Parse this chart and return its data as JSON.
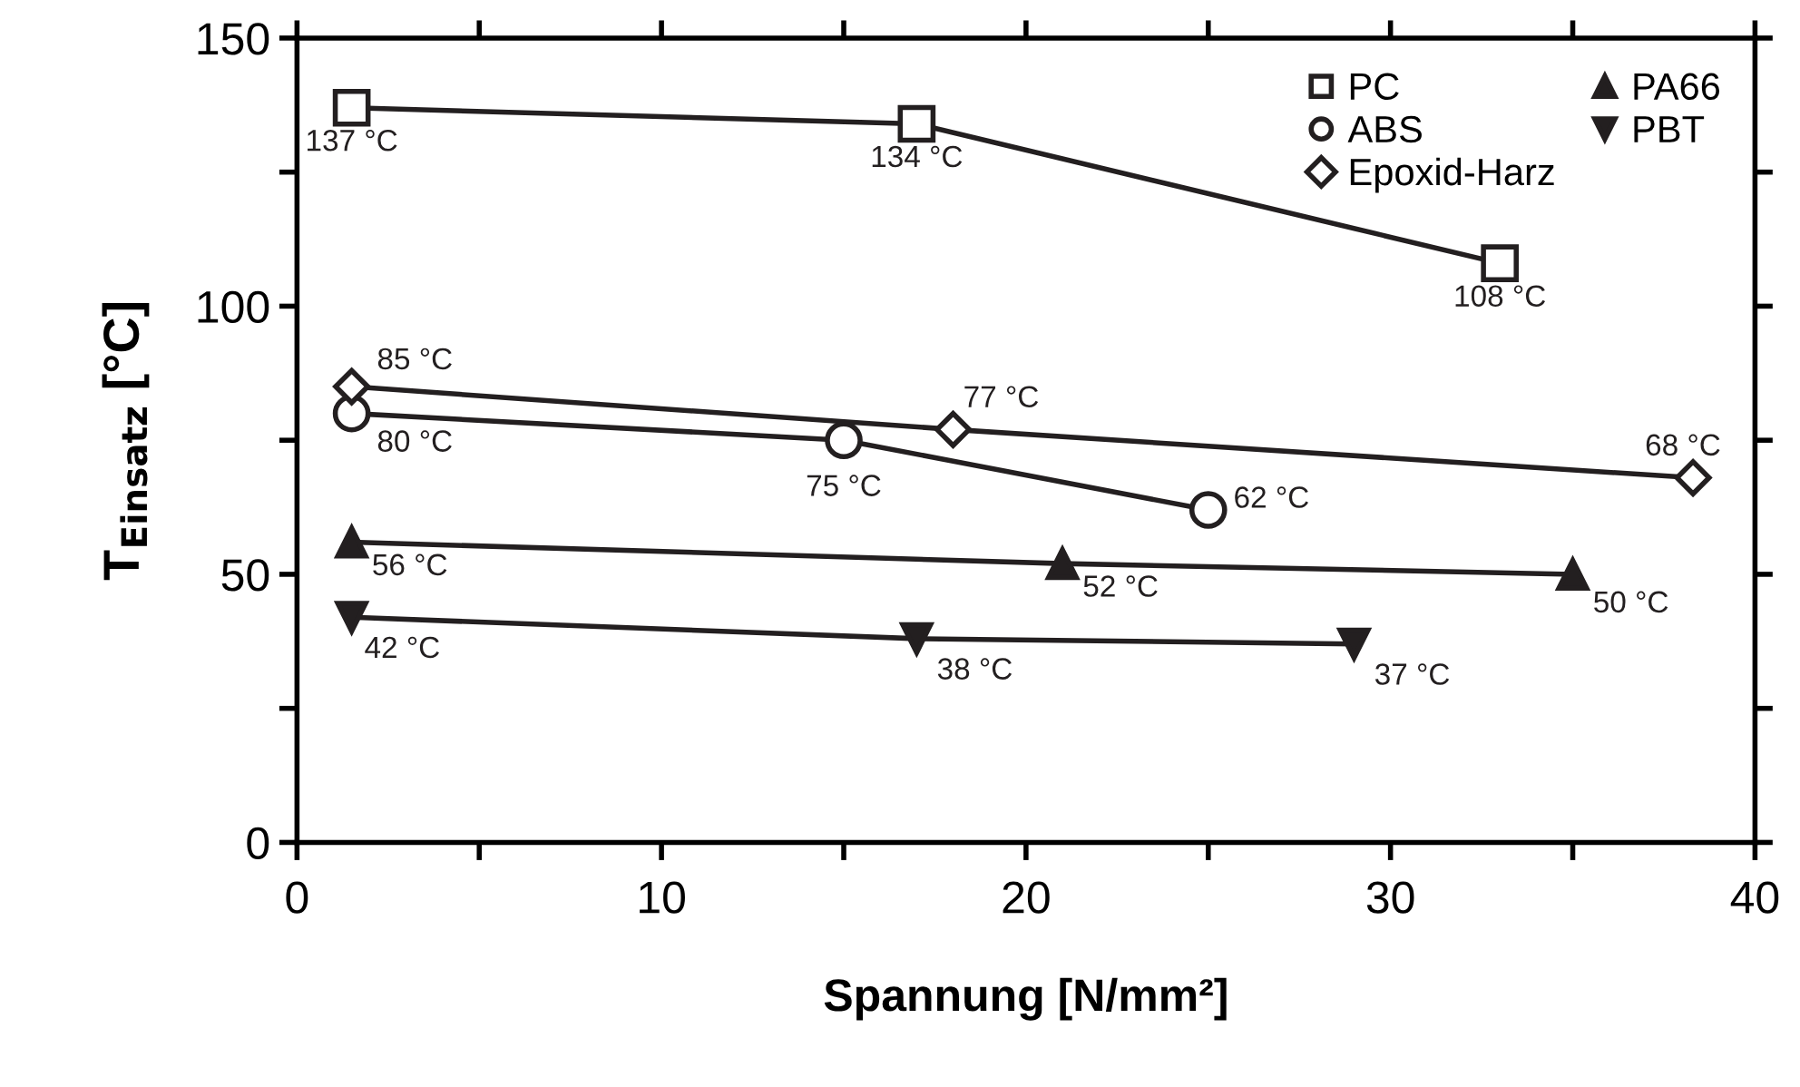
{
  "chart_data": {
    "type": "line",
    "xlabel": "Spannung [N/mm²]",
    "ylabel": "T$_{Einsatz}$ [°C]",
    "xlim": [
      0,
      40
    ],
    "xticks": [
      0,
      {
        "value": 5,
        "label": null
      },
      10,
      {
        "value": 15,
        "label": null
      },
      20,
      {
        "value": 25,
        "label": null
      },
      30,
      {
        "value": 35,
        "label": null
      },
      40
    ],
    "ylim": [
      0,
      150
    ],
    "yticks": [
      0,
      {
        "value": 25,
        "label": null
      },
      50,
      {
        "value": 75,
        "label": null
      },
      100,
      {
        "value": 125,
        "label": null
      },
      150
    ],
    "grid": false,
    "legend": "top right",
    "line_style": "solid",
    "series": [
      {
        "name": "PC",
        "color": "#231f20",
        "marker": "square",
        "x": [
          1.5,
          17,
          33
        ],
        "values": [
          137,
          134,
          108
        ],
        "value_labels": [
          "137 °C",
          "134 °C",
          "108 °C"
        ]
      },
      {
        "name": "ABS",
        "color": "#231f20",
        "marker": "circle",
        "x": [
          1.5,
          15,
          25
        ],
        "values": [
          80,
          75,
          62
        ],
        "value_labels": [
          "80 °C",
          "75 °C",
          "62 °C"
        ]
      },
      {
        "name": "Epoxid-Harz",
        "color": "#231f20",
        "marker": "diamond",
        "x": [
          1.5,
          18,
          38.3
        ],
        "values": [
          85,
          77,
          68
        ],
        "value_labels": [
          "85 °C",
          "77 °C",
          "68 °C"
        ]
      },
      {
        "name": "PA66",
        "color": "#231f20",
        "marker": "triangle",
        "x": [
          1.5,
          21,
          35
        ],
        "values": [
          56,
          52,
          50
        ],
        "value_labels": [
          "56 °C",
          "52 °C",
          "50 °C"
        ]
      },
      {
        "name": "PBT",
        "color": "#231f20",
        "marker": "triangle_down",
        "x": [
          1.5,
          17,
          29
        ],
        "values": [
          42,
          38,
          37
        ],
        "value_labels": [
          "42 °C",
          "38 °C",
          "37 °C"
        ]
      }
    ]
  }
}
